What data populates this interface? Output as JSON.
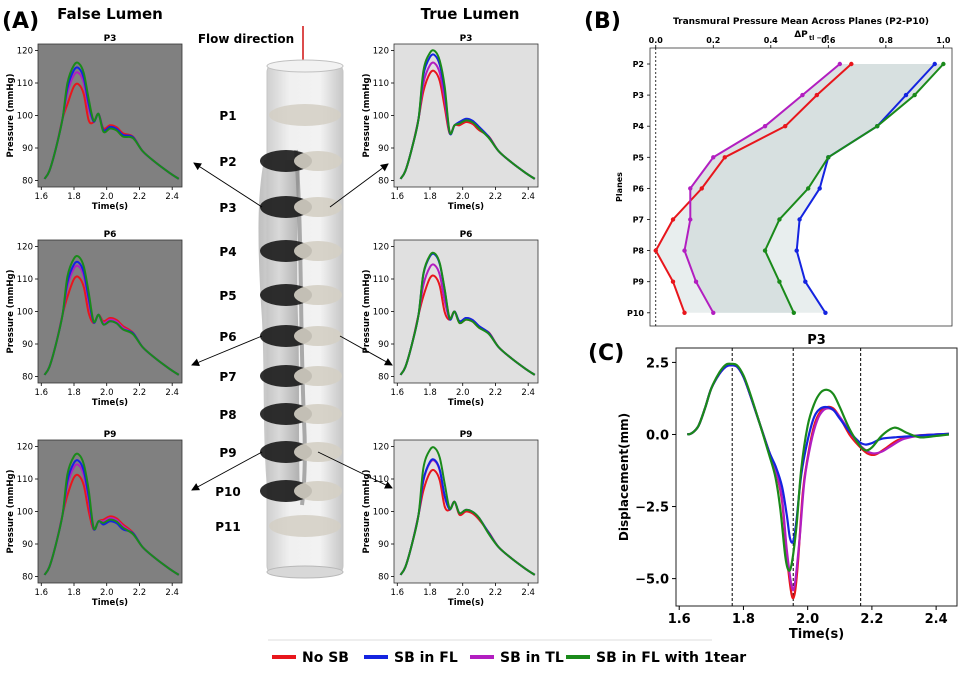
{
  "colors": {
    "no_sb": "#e8161c",
    "sb_fl": "#1424e0",
    "sb_tl": "#b21ec0",
    "sb_fl_1tear": "#1a8a1a",
    "fl_panel_bg": "#808080",
    "tl_panel_bg": "#e0e0e0",
    "arrow_red": "#d01010"
  },
  "labels": {
    "panel_a": "(A)",
    "panel_b": "(B)",
    "panel_c": "(C)",
    "false_lumen": "False Lumen",
    "true_lumen": "True Lumen",
    "flow_direction": "Flow direction"
  },
  "planes": [
    "P1",
    "P2",
    "P3",
    "P4",
    "P5",
    "P6",
    "P7",
    "P8",
    "P9",
    "P10",
    "P11"
  ],
  "legend": {
    "items": [
      {
        "label": "No SB",
        "color_key": "no_sb"
      },
      {
        "label": "SB in FL",
        "color_key": "sb_fl"
      },
      {
        "label": "SB in TL",
        "color_key": "sb_tl"
      },
      {
        "label": "SB in FL with 1tear",
        "color_key": "sb_fl_1tear"
      }
    ]
  },
  "chart_data": [
    {
      "id": "pressure_panels",
      "type": "line",
      "xlabel": "Time(s)",
      "ylabel": "Pressure (mmHg)",
      "xlim": [
        1.58,
        2.46
      ],
      "ylim": [
        78,
        122
      ],
      "xticks": [
        1.6,
        1.8,
        2.0,
        2.2,
        2.4
      ],
      "xtick_labels": [
        "1.6",
        "1.8",
        "2.0",
        "2.2",
        "2.4"
      ],
      "yticks": [
        80,
        90,
        100,
        110,
        120
      ],
      "ytick_labels": [
        "80",
        "90",
        "100",
        "110",
        "120"
      ],
      "series_names": [
        "No SB",
        "SB in FL",
        "SB in TL",
        "SB in FL with 1tear"
      ],
      "panels": [
        {
          "title": "P3",
          "lumen": "False Lumen",
          "peaks": [
            109.5,
            114.5,
            113.0,
            116.0
          ],
          "notch": 98.0,
          "second": [
            97.0,
            96.5,
            96.5,
            96.0
          ]
        },
        {
          "title": "P6",
          "lumen": "False Lumen",
          "peaks": [
            110.5,
            115.0,
            113.8,
            116.8
          ],
          "notch": 96.5,
          "second": [
            98.0,
            97.0,
            97.5,
            97.0
          ]
        },
        {
          "title": "P9",
          "lumen": "False Lumen",
          "peaks": [
            111.0,
            115.5,
            114.2,
            117.5
          ],
          "notch": 94.5,
          "second": [
            98.5,
            97.0,
            98.0,
            97.5
          ]
        },
        {
          "title": "P3",
          "lumen": "True Lumen",
          "peaks": [
            113.5,
            118.5,
            116.0,
            119.8
          ],
          "notch": 94.5,
          "second": [
            98.0,
            99.0,
            98.5,
            98.5
          ]
        },
        {
          "title": "P6",
          "lumen": "True Lumen",
          "peaks": [
            110.8,
            117.5,
            114.2,
            117.8
          ],
          "notch": 97.5,
          "second": [
            97.5,
            98.0,
            98.0,
            97.5
          ]
        },
        {
          "title": "P9",
          "lumen": "True Lumen",
          "peaks": [
            112.5,
            115.8,
            115.5,
            119.5
          ],
          "notch": 100.5,
          "second": [
            100.0,
            100.5,
            100.5,
            100.5
          ]
        }
      ]
    },
    {
      "id": "transmural",
      "type": "line",
      "title": "Transmural Pressure Mean Across Planes (P2-P10)",
      "xlabel": "ΔP",
      "xlabel_sub": "tl − fl",
      "ylabel": "Planes",
      "xlim": [
        -0.02,
        1.03
      ],
      "xticks": [
        0.0,
        0.2,
        0.4,
        0.6,
        0.8,
        1.0
      ],
      "xtick_labels": [
        "0.0",
        "0.2",
        "0.4",
        "0.6",
        "0.8",
        "1.0"
      ],
      "categories": [
        "P2",
        "P3",
        "P4",
        "P5",
        "P6",
        "P7",
        "P8",
        "P9",
        "P10"
      ],
      "series": [
        {
          "name": "No SB",
          "color_key": "no_sb",
          "values": [
            0.68,
            0.56,
            0.45,
            0.24,
            0.16,
            0.06,
            0.0,
            0.06,
            0.1
          ]
        },
        {
          "name": "SB in FL",
          "color_key": "sb_fl",
          "values": [
            0.97,
            0.87,
            0.77,
            0.6,
            0.57,
            0.5,
            0.49,
            0.52,
            0.59
          ]
        },
        {
          "name": "SB in TL",
          "color_key": "sb_tl",
          "values": [
            0.64,
            0.51,
            0.38,
            0.2,
            0.12,
            0.12,
            0.1,
            0.14,
            0.2
          ]
        },
        {
          "name": "SB in FL with 1tear",
          "color_key": "sb_fl_1tear",
          "values": [
            1.0,
            0.9,
            0.77,
            0.6,
            0.53,
            0.43,
            0.38,
            0.43,
            0.48
          ]
        }
      ]
    },
    {
      "id": "displacement",
      "type": "line",
      "title": "P3",
      "xlabel": "Time(s)",
      "ylabel": "Displacement(mm)",
      "xlim": [
        1.59,
        2.465
      ],
      "ylim": [
        -5.95,
        3.0
      ],
      "xticks": [
        1.6,
        1.8,
        2.0,
        2.2,
        2.4
      ],
      "xtick_labels": [
        "1.6",
        "1.8",
        "2.0",
        "2.2",
        "2.4"
      ],
      "yticks": [
        2.5,
        0.0,
        -2.5,
        -5.0
      ],
      "ytick_labels": [
        "2.5",
        "0.0",
        "−2.5",
        "−5.0"
      ],
      "vlines": [
        1.765,
        1.955,
        2.165
      ],
      "series": [
        {
          "name": "No SB",
          "color_key": "no_sb",
          "points": [
            [
              1.625,
              0.0
            ],
            [
              1.64,
              0.05
            ],
            [
              1.66,
              0.3
            ],
            [
              1.68,
              0.9
            ],
            [
              1.7,
              1.6
            ],
            [
              1.725,
              2.1
            ],
            [
              1.745,
              2.35
            ],
            [
              1.76,
              2.4
            ],
            [
              1.78,
              2.35
            ],
            [
              1.8,
              2.0
            ],
            [
              1.82,
              1.4
            ],
            [
              1.85,
              0.4
            ],
            [
              1.88,
              -0.6
            ],
            [
              1.9,
              -1.2
            ],
            [
              1.92,
              -2.3
            ],
            [
              1.935,
              -4.2
            ],
            [
              1.95,
              -5.55
            ],
            [
              1.96,
              -5.5
            ],
            [
              1.97,
              -4.4
            ],
            [
              1.985,
              -2.0
            ],
            [
              2.0,
              -0.8
            ],
            [
              2.02,
              0.3
            ],
            [
              2.04,
              0.8
            ],
            [
              2.06,
              0.95
            ],
            [
              2.08,
              0.9
            ],
            [
              2.1,
              0.6
            ],
            [
              2.13,
              0.0
            ],
            [
              2.16,
              -0.4
            ],
            [
              2.185,
              -0.65
            ],
            [
              2.21,
              -0.7
            ],
            [
              2.24,
              -0.5
            ],
            [
              2.28,
              -0.2
            ],
            [
              2.33,
              -0.05
            ],
            [
              2.4,
              0.0
            ],
            [
              2.44,
              0.02
            ]
          ]
        },
        {
          "name": "SB in FL",
          "color_key": "sb_fl",
          "points": [
            [
              1.625,
              0.0
            ],
            [
              1.64,
              0.05
            ],
            [
              1.66,
              0.3
            ],
            [
              1.68,
              0.9
            ],
            [
              1.7,
              1.6
            ],
            [
              1.725,
              2.1
            ],
            [
              1.745,
              2.35
            ],
            [
              1.76,
              2.4
            ],
            [
              1.78,
              2.35
            ],
            [
              1.8,
              2.0
            ],
            [
              1.82,
              1.4
            ],
            [
              1.85,
              0.4
            ],
            [
              1.88,
              -0.6
            ],
            [
              1.9,
              -1.1
            ],
            [
              1.92,
              -1.8
            ],
            [
              1.935,
              -2.8
            ],
            [
              1.945,
              -3.6
            ],
            [
              1.955,
              -3.7
            ],
            [
              1.965,
              -3.0
            ],
            [
              1.98,
              -1.4
            ],
            [
              2.0,
              -0.2
            ],
            [
              2.02,
              0.6
            ],
            [
              2.04,
              0.9
            ],
            [
              2.06,
              0.95
            ],
            [
              2.08,
              0.85
            ],
            [
              2.1,
              0.55
            ],
            [
              2.13,
              0.1
            ],
            [
              2.16,
              -0.25
            ],
            [
              2.18,
              -0.35
            ],
            [
              2.2,
              -0.3
            ],
            [
              2.23,
              -0.15
            ],
            [
              2.27,
              -0.1
            ],
            [
              2.33,
              -0.05
            ],
            [
              2.4,
              0.0
            ],
            [
              2.44,
              0.02
            ]
          ]
        },
        {
          "name": "SB in TL",
          "color_key": "sb_tl",
          "points": [
            [
              1.625,
              0.0
            ],
            [
              1.64,
              0.05
            ],
            [
              1.66,
              0.3
            ],
            [
              1.68,
              0.9
            ],
            [
              1.7,
              1.6
            ],
            [
              1.725,
              2.1
            ],
            [
              1.745,
              2.35
            ],
            [
              1.76,
              2.4
            ],
            [
              1.78,
              2.35
            ],
            [
              1.8,
              2.0
            ],
            [
              1.82,
              1.4
            ],
            [
              1.85,
              0.4
            ],
            [
              1.88,
              -0.6
            ],
            [
              1.9,
              -1.2
            ],
            [
              1.92,
              -2.2
            ],
            [
              1.935,
              -4.0
            ],
            [
              1.95,
              -5.25
            ],
            [
              1.96,
              -5.2
            ],
            [
              1.975,
              -3.6
            ],
            [
              1.99,
              -1.6
            ],
            [
              2.01,
              -0.3
            ],
            [
              2.03,
              0.5
            ],
            [
              2.05,
              0.85
            ],
            [
              2.07,
              0.9
            ],
            [
              2.09,
              0.75
            ],
            [
              2.11,
              0.45
            ],
            [
              2.14,
              -0.05
            ],
            [
              2.17,
              -0.45
            ],
            [
              2.2,
              -0.65
            ],
            [
              2.23,
              -0.6
            ],
            [
              2.26,
              -0.4
            ],
            [
              2.3,
              -0.15
            ],
            [
              2.36,
              -0.03
            ],
            [
              2.44,
              0.02
            ]
          ]
        },
        {
          "name": "SB in FL with 1tear",
          "color_key": "sb_fl_1tear",
          "points": [
            [
              1.625,
              0.0
            ],
            [
              1.64,
              0.05
            ],
            [
              1.66,
              0.3
            ],
            [
              1.68,
              0.9
            ],
            [
              1.7,
              1.6
            ],
            [
              1.725,
              2.15
            ],
            [
              1.745,
              2.42
            ],
            [
              1.76,
              2.45
            ],
            [
              1.78,
              2.4
            ],
            [
              1.8,
              2.05
            ],
            [
              1.82,
              1.45
            ],
            [
              1.85,
              0.4
            ],
            [
              1.88,
              -0.7
            ],
            [
              1.9,
              -1.5
            ],
            [
              1.915,
              -2.6
            ],
            [
              1.93,
              -4.2
            ],
            [
              1.94,
              -4.7
            ],
            [
              1.95,
              -4.5
            ],
            [
              1.965,
              -3.2
            ],
            [
              1.98,
              -1.2
            ],
            [
              2.0,
              0.3
            ],
            [
              2.02,
              1.05
            ],
            [
              2.04,
              1.45
            ],
            [
              2.06,
              1.55
            ],
            [
              2.08,
              1.4
            ],
            [
              2.1,
              0.95
            ],
            [
              2.13,
              0.2
            ],
            [
              2.16,
              -0.35
            ],
            [
              2.18,
              -0.55
            ],
            [
              2.2,
              -0.45
            ],
            [
              2.23,
              -0.05
            ],
            [
              2.26,
              0.2
            ],
            [
              2.28,
              0.22
            ],
            [
              2.31,
              0.05
            ],
            [
              2.35,
              -0.1
            ],
            [
              2.4,
              -0.05
            ],
            [
              2.44,
              0.0
            ]
          ]
        }
      ]
    }
  ]
}
